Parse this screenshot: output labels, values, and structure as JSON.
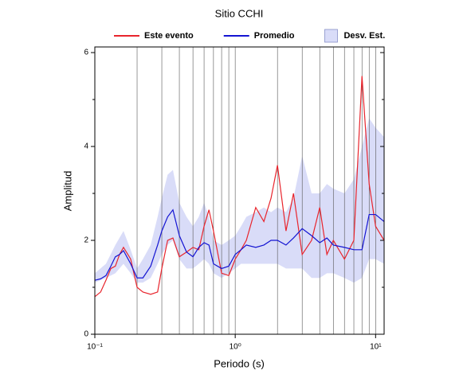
{
  "chart_data": {
    "type": "line",
    "title": "Sitio CCHI",
    "xlabel": "Periodo (s)",
    "ylabel": "Amplitud",
    "xscale": "log",
    "grid": true,
    "xlim": [
      0.1,
      11.5
    ],
    "ylim": [
      0,
      6.12
    ],
    "xticks": [
      {
        "value": 0.1,
        "label": "10⁻¹"
      },
      {
        "value": 1,
        "label": "10⁰"
      },
      {
        "value": 10,
        "label": "10¹"
      }
    ],
    "xminor": [
      0.2,
      0.3,
      0.4,
      0.5,
      0.6,
      0.7,
      0.8,
      0.9,
      2,
      3,
      4,
      5,
      6,
      7,
      8,
      9
    ],
    "yticks": [
      0,
      2,
      4,
      6
    ],
    "yminor": [
      1,
      3,
      5
    ],
    "x": [
      0.1,
      0.11,
      0.12,
      0.13,
      0.14,
      0.15,
      0.16,
      0.18,
      0.2,
      0.22,
      0.25,
      0.28,
      0.3,
      0.33,
      0.36,
      0.4,
      0.45,
      0.5,
      0.55,
      0.6,
      0.65,
      0.7,
      0.8,
      0.9,
      1.0,
      1.1,
      1.2,
      1.4,
      1.6,
      1.8,
      2.0,
      2.3,
      2.6,
      3.0,
      3.5,
      4,
      4.5,
      5,
      6,
      7,
      8,
      9,
      10,
      11.5
    ],
    "series": [
      {
        "name": "Este evento",
        "color": "#e8242c",
        "values": [
          0.8,
          0.9,
          1.15,
          1.4,
          1.45,
          1.7,
          1.85,
          1.6,
          1.0,
          0.9,
          0.85,
          0.9,
          1.4,
          2.0,
          2.05,
          1.65,
          1.75,
          1.85,
          1.8,
          2.3,
          2.65,
          2.2,
          1.3,
          1.25,
          1.6,
          1.8,
          2.0,
          2.7,
          2.4,
          2.9,
          3.6,
          2.2,
          3.0,
          1.7,
          2.0,
          2.7,
          1.7,
          2.0,
          1.6,
          2.0,
          5.5,
          3.2,
          2.3,
          2.0
        ]
      },
      {
        "name": "Promedio",
        "color": "#1414d2",
        "values": [
          1.15,
          1.18,
          1.25,
          1.45,
          1.65,
          1.7,
          1.78,
          1.5,
          1.2,
          1.2,
          1.45,
          1.9,
          2.2,
          2.5,
          2.65,
          2.1,
          1.75,
          1.65,
          1.85,
          1.95,
          1.9,
          1.5,
          1.4,
          1.45,
          1.7,
          1.8,
          1.9,
          1.85,
          1.9,
          2.0,
          2.0,
          1.9,
          2.05,
          2.25,
          2.1,
          1.95,
          2.05,
          1.9,
          1.85,
          1.8,
          1.8,
          2.55,
          2.55,
          2.4
        ]
      }
    ],
    "band": {
      "name": "Desv. Est.",
      "color": "#d9dcf8",
      "x": [
        0.1,
        0.12,
        0.14,
        0.16,
        0.18,
        0.2,
        0.22,
        0.25,
        0.28,
        0.3,
        0.33,
        0.36,
        0.4,
        0.45,
        0.5,
        0.55,
        0.6,
        0.65,
        0.7,
        0.8,
        0.9,
        1.0,
        1.1,
        1.2,
        1.4,
        1.6,
        1.8,
        2.0,
        2.3,
        2.6,
        3.0,
        3.5,
        4,
        4.5,
        5,
        6,
        7,
        8,
        9,
        10,
        11.5
      ],
      "lower": [
        1.1,
        1.2,
        1.3,
        1.5,
        1.3,
        1.1,
        1.1,
        1.2,
        1.5,
        1.7,
        1.9,
        2.0,
        1.6,
        1.4,
        1.4,
        1.5,
        1.6,
        1.5,
        1.3,
        1.2,
        1.3,
        1.4,
        1.5,
        1.5,
        1.5,
        1.5,
        1.5,
        1.5,
        1.4,
        1.4,
        1.4,
        1.2,
        1.2,
        1.3,
        1.3,
        1.2,
        1.1,
        1.2,
        1.6,
        1.6,
        1.5
      ],
      "upper": [
        1.3,
        1.5,
        1.9,
        2.2,
        1.8,
        1.4,
        1.6,
        1.9,
        2.5,
        2.9,
        3.4,
        3.5,
        2.8,
        2.5,
        2.3,
        2.5,
        2.8,
        2.5,
        2.0,
        1.9,
        2.0,
        2.1,
        2.3,
        2.5,
        2.6,
        2.7,
        2.6,
        2.7,
        2.6,
        2.9,
        3.8,
        3.0,
        3.0,
        3.2,
        3.1,
        3.0,
        3.3,
        4.0,
        4.6,
        4.4,
        4.2
      ]
    }
  }
}
